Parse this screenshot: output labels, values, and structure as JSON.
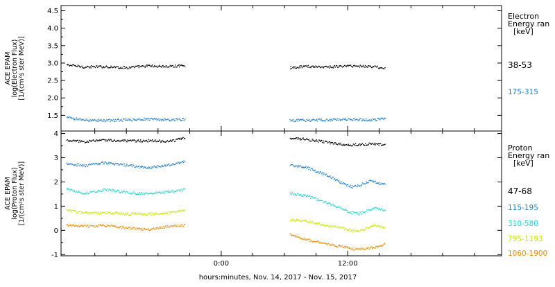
{
  "chart_data": [
    {
      "type": "scatter",
      "panel": "electron",
      "ylabel_lines": [
        "ACE EPAM",
        "log(Electron Flux)",
        "[1/(cm²s ster MeV)]"
      ],
      "ylim": [
        1.05,
        4.65
      ],
      "yticks": [
        1.5,
        2.0,
        2.5,
        3.0,
        3.5,
        4.0,
        4.5
      ],
      "ytick_labels": [
        "1.5",
        "2.0",
        "2.5",
        "3.0",
        "3.5",
        "4.0",
        "4.5"
      ],
      "legend_title": [
        "Electron",
        "Energy ran",
        "[keV]"
      ],
      "series": [
        {
          "name": "38-53",
          "color": "#000000",
          "segments": [
            {
              "x": [
                -14.7,
                -13.0,
                -11.0,
                -9.0,
                -7.0,
                -5.0,
                -3.5
              ],
              "y": [
                2.96,
                2.9,
                2.91,
                2.88,
                2.93,
                2.91,
                2.95
              ]
            },
            {
              "x": [
                6.5,
                8.0,
                10.0,
                12.0,
                14.0,
                15.5
              ],
              "y": [
                2.88,
                2.92,
                2.9,
                2.93,
                2.92,
                2.87
              ]
            }
          ]
        },
        {
          "name": "175-315",
          "color": "#1f7fd0",
          "segments": [
            {
              "x": [
                -14.7,
                -13.0,
                -11.0,
                -9.0,
                -7.0,
                -5.0,
                -3.5
              ],
              "y": [
                1.45,
                1.38,
                1.36,
                1.38,
                1.41,
                1.38,
                1.4
              ]
            },
            {
              "x": [
                6.5,
                8.0,
                10.0,
                12.0,
                14.0,
                15.5
              ],
              "y": [
                1.36,
                1.37,
                1.38,
                1.4,
                1.38,
                1.42
              ]
            }
          ]
        }
      ]
    },
    {
      "type": "scatter",
      "panel": "proton",
      "ylabel_lines": [
        "ACE EPAM",
        "log(Proton Flux)",
        "[1/(cm²s ster MeV)]"
      ],
      "ylim": [
        -1.05,
        4.1
      ],
      "yticks": [
        -1,
        0,
        1,
        2,
        3,
        4
      ],
      "ytick_labels": [
        "-1",
        "0",
        "1",
        "2",
        "3",
        "4"
      ],
      "legend_title": [
        "Proton",
        "Energy ran",
        "[keV]"
      ],
      "series": [
        {
          "name": "47-68",
          "color": "#000000",
          "segments": [
            {
              "x": [
                -14.7,
                -13.0,
                -11.0,
                -9.0,
                -7.0,
                -5.0,
                -3.5
              ],
              "y": [
                3.72,
                3.68,
                3.75,
                3.7,
                3.72,
                3.68,
                3.85
              ]
            },
            {
              "x": [
                6.5,
                8.0,
                10.0,
                12.0,
                14.0,
                15.5
              ],
              "y": [
                3.82,
                3.78,
                3.65,
                3.55,
                3.58,
                3.56
              ]
            }
          ]
        },
        {
          "name": "115-195",
          "color": "#1f7fd0",
          "segments": [
            {
              "x": [
                -14.7,
                -13.0,
                -11.0,
                -9.0,
                -7.0,
                -5.0,
                -3.5
              ],
              "y": [
                2.78,
                2.68,
                2.82,
                2.7,
                2.6,
                2.72,
                2.85
              ]
            },
            {
              "x": [
                6.5,
                8.0,
                10.0,
                11.5,
                12.5,
                14.0,
                15.5
              ],
              "y": [
                2.72,
                2.62,
                2.3,
                1.95,
                1.8,
                2.05,
                1.92
              ]
            }
          ]
        },
        {
          "name": "310-580",
          "color": "#22d3d3",
          "segments": [
            {
              "x": [
                -14.7,
                -13.0,
                -11.0,
                -9.0,
                -7.0,
                -5.0,
                -3.5
              ],
              "y": [
                1.72,
                1.55,
                1.7,
                1.58,
                1.52,
                1.6,
                1.7
              ]
            },
            {
              "x": [
                6.5,
                8.0,
                10.0,
                12.0,
                13.0,
                14.5,
                15.5
              ],
              "y": [
                1.55,
                1.45,
                1.15,
                0.8,
                0.7,
                0.95,
                0.85
              ]
            }
          ]
        },
        {
          "name": "795-1193",
          "color": "#c8e600",
          "segments": [
            {
              "x": [
                -14.7,
                -13.0,
                -11.0,
                -9.0,
                -7.0,
                -5.0,
                -3.5
              ],
              "y": [
                0.85,
                0.72,
                0.75,
                0.7,
                0.68,
                0.75,
                0.85
              ]
            },
            {
              "x": [
                6.5,
                8.0,
                10.0,
                12.0,
                13.0,
                14.5,
                15.5
              ],
              "y": [
                0.45,
                0.4,
                0.22,
                0.05,
                -0.05,
                0.25,
                0.12
              ]
            }
          ]
        },
        {
          "name": "1060-1900",
          "color": "#f08a00",
          "segments": [
            {
              "x": [
                -14.7,
                -13.0,
                -11.0,
                -9.0,
                -7.0,
                -5.0,
                -3.5
              ],
              "y": [
                0.22,
                0.18,
                0.22,
                0.12,
                0.05,
                0.18,
                0.22
              ]
            },
            {
              "x": [
                6.5,
                8.0,
                10.0,
                12.0,
                13.0,
                14.5,
                15.5
              ],
              "y": [
                -0.15,
                -0.35,
                -0.55,
                -0.7,
                -0.78,
                -0.68,
                -0.55
              ]
            }
          ]
        }
      ]
    }
  ],
  "x_axis": {
    "range_hours": [
      -15.2,
      26.6
    ],
    "major_ticks": [
      0,
      12
    ],
    "major_labels": [
      "0:00",
      "12:00"
    ],
    "minor_ticks": [
      -12,
      -9,
      -6,
      -3,
      3,
      6,
      9,
      15,
      18,
      21,
      24
    ],
    "xlabel": "hours:minutes, Nov. 14, 2017 - Nov. 15, 2017"
  }
}
